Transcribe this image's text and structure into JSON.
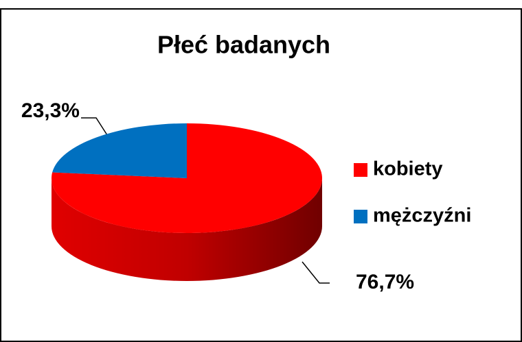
{
  "chart_data": {
    "type": "pie",
    "title": "Płeć badanych",
    "categories": [
      "kobiety",
      "mężczyźni"
    ],
    "values": [
      76.7,
      23.3
    ],
    "value_labels": [
      "76,7%",
      "23,3%"
    ],
    "colors": [
      "#ff0000",
      "#0070c0"
    ],
    "legend": "right"
  }
}
